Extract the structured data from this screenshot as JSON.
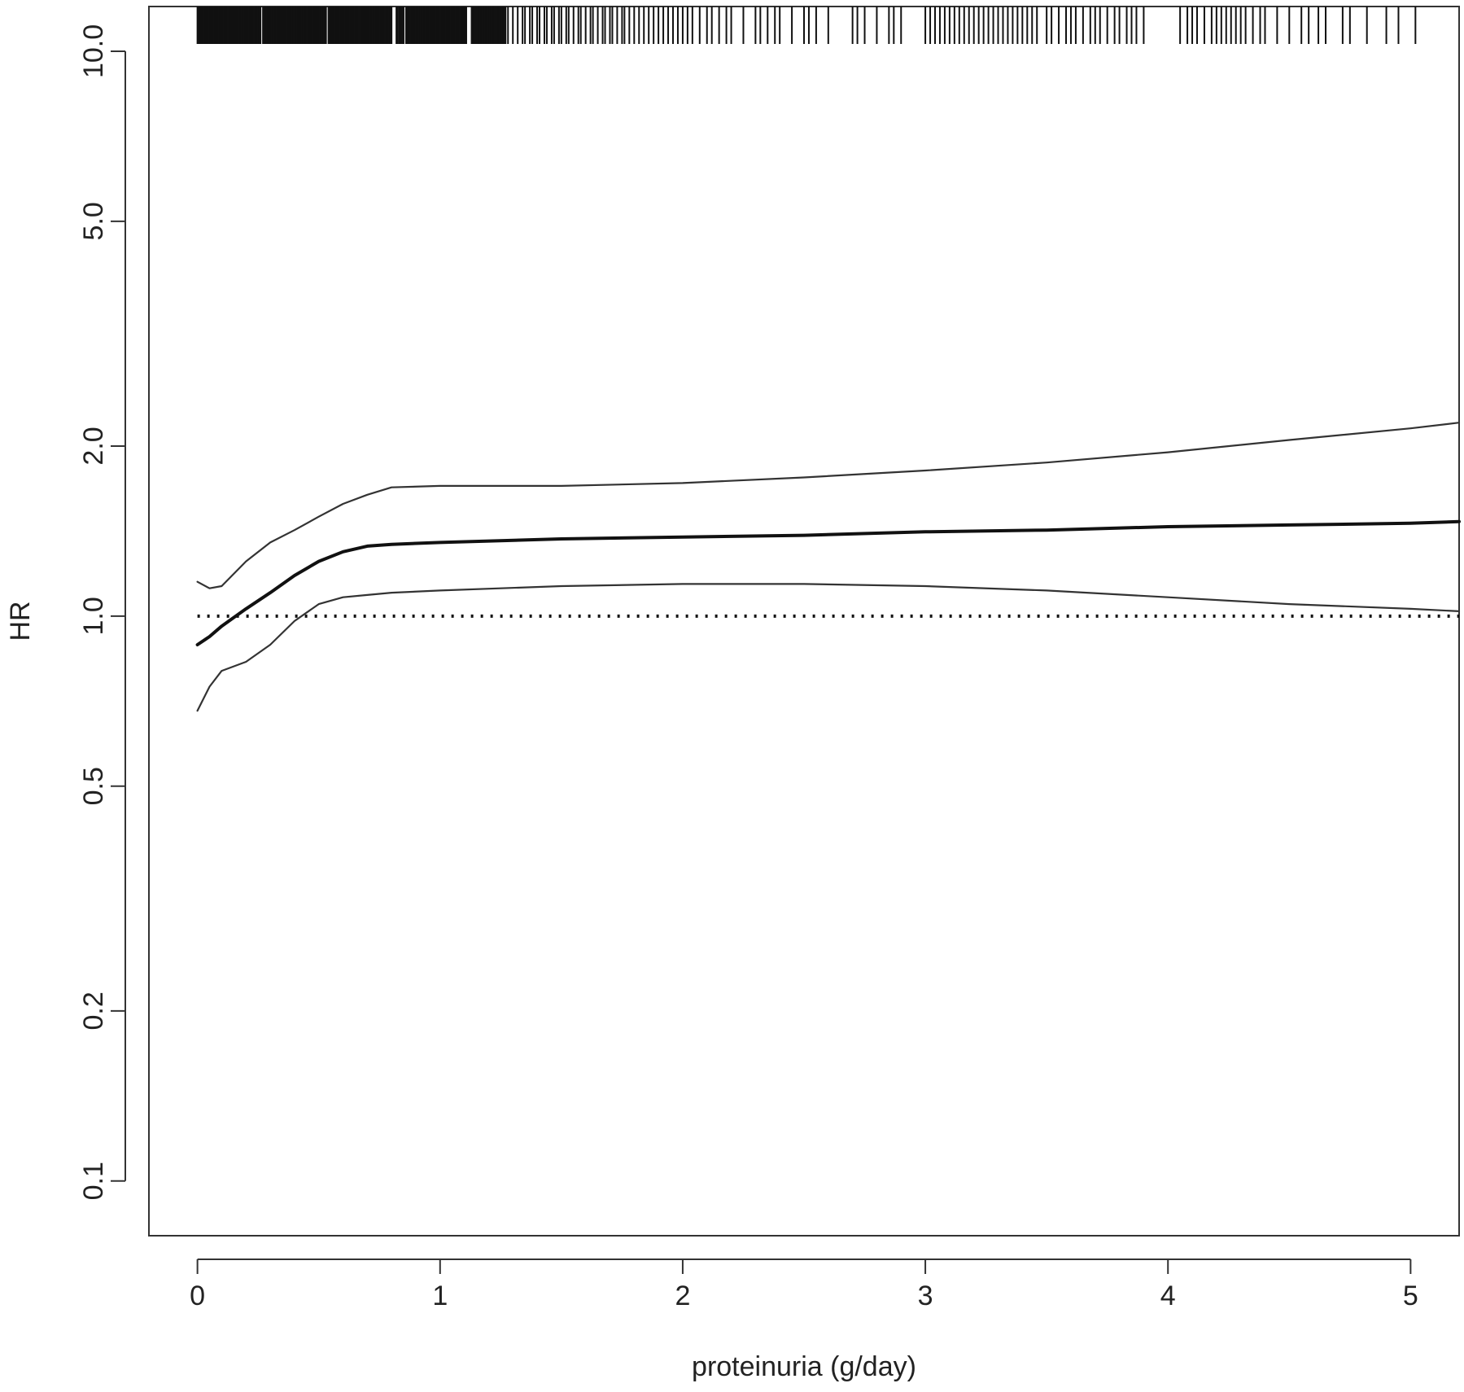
{
  "chart_data": {
    "type": "line",
    "title": "",
    "xlabel": "proteinuria (g/day)",
    "ylabel": "HR",
    "xlim": [
      -0.2,
      5.2
    ],
    "ylim": [
      0.08,
      12.0
    ],
    "y_scale": "log",
    "x_ticks": [
      0,
      1,
      2,
      3,
      4,
      5
    ],
    "x_tick_labels": [
      "0",
      "1",
      "2",
      "3",
      "4",
      "5"
    ],
    "y_ticks": [
      0.1,
      0.2,
      0.5,
      1.0,
      2.0,
      5.0,
      10.0
    ],
    "y_tick_labels": [
      "0.1",
      "0.2",
      "0.5",
      "1.0",
      "2.0",
      "5.0",
      "10.0"
    ],
    "grid": false,
    "legend": "none",
    "series": [
      {
        "style": "solid-thick",
        "color": "#111111",
        "x": [
          0,
          0.05,
          0.1,
          0.2,
          0.3,
          0.4,
          0.5,
          0.6,
          0.7,
          0.8,
          1.0,
          1.5,
          2.0,
          2.5,
          3.0,
          3.5,
          4.0,
          4.5,
          5.0,
          5.2
        ],
        "y": [
          0.89,
          0.92,
          0.96,
          1.03,
          1.1,
          1.18,
          1.25,
          1.3,
          1.33,
          1.34,
          1.35,
          1.37,
          1.38,
          1.39,
          1.41,
          1.42,
          1.44,
          1.45,
          1.46,
          1.47
        ]
      },
      {
        "style": "solid-thin",
        "color": "#333333",
        "x": [
          0,
          0.05,
          0.1,
          0.2,
          0.3,
          0.4,
          0.5,
          0.6,
          0.7,
          0.8,
          1.0,
          1.5,
          2.0,
          2.5,
          3.0,
          3.5,
          4.0,
          4.5,
          5.0,
          5.2
        ],
        "y": [
          1.15,
          1.12,
          1.13,
          1.25,
          1.35,
          1.42,
          1.5,
          1.58,
          1.64,
          1.69,
          1.7,
          1.7,
          1.72,
          1.76,
          1.81,
          1.87,
          1.95,
          2.05,
          2.15,
          2.2
        ]
      },
      {
        "style": "solid-thin",
        "color": "#333333",
        "x": [
          0,
          0.05,
          0.1,
          0.2,
          0.3,
          0.4,
          0.5,
          0.6,
          0.7,
          0.8,
          1.0,
          1.5,
          2.0,
          2.5,
          3.0,
          3.5,
          4.0,
          4.5,
          5.0,
          5.2
        ],
        "y": [
          0.68,
          0.75,
          0.8,
          0.83,
          0.89,
          0.98,
          1.05,
          1.08,
          1.09,
          1.1,
          1.11,
          1.13,
          1.14,
          1.14,
          1.13,
          1.11,
          1.08,
          1.05,
          1.03,
          1.02
        ]
      }
    ],
    "reference_line": {
      "y": 1.0,
      "style": "dotted",
      "color": "#111111"
    },
    "rug": {
      "position": "top",
      "bands": [
        {
          "from": 0.0,
          "to": 0.26,
          "step": 0.004
        },
        {
          "from": 0.27,
          "to": 0.53,
          "step": 0.004
        },
        {
          "from": 0.54,
          "to": 0.8,
          "step": 0.004
        },
        {
          "from": 0.82,
          "to": 0.85,
          "step": 0.006
        },
        {
          "from": 0.86,
          "to": 1.11,
          "step": 0.004
        },
        {
          "from": 1.13,
          "to": 1.27,
          "step": 0.005
        }
      ],
      "x": [
        1.28,
        1.3,
        1.32,
        1.34,
        1.35,
        1.37,
        1.38,
        1.4,
        1.41,
        1.43,
        1.44,
        1.46,
        1.47,
        1.49,
        1.5,
        1.52,
        1.53,
        1.55,
        1.57,
        1.58,
        1.6,
        1.62,
        1.63,
        1.65,
        1.67,
        1.68,
        1.7,
        1.71,
        1.73,
        1.75,
        1.76,
        1.78,
        1.8,
        1.82,
        1.84,
        1.86,
        1.88,
        1.9,
        1.92,
        1.94,
        1.96,
        1.98,
        2.0,
        2.02,
        2.04,
        2.07,
        2.1,
        2.12,
        2.15,
        2.18,
        2.2,
        2.25,
        2.3,
        2.32,
        2.35,
        2.38,
        2.4,
        2.45,
        2.5,
        2.52,
        2.55,
        2.6,
        2.7,
        2.72,
        2.75,
        2.8,
        2.85,
        2.87,
        2.9,
        3.0,
        3.02,
        3.04,
        3.06,
        3.08,
        3.1,
        3.12,
        3.14,
        3.16,
        3.18,
        3.2,
        3.22,
        3.24,
        3.26,
        3.28,
        3.3,
        3.32,
        3.34,
        3.36,
        3.38,
        3.4,
        3.42,
        3.44,
        3.46,
        3.5,
        3.52,
        3.55,
        3.58,
        3.6,
        3.62,
        3.65,
        3.68,
        3.7,
        3.72,
        3.75,
        3.78,
        3.8,
        3.83,
        3.85,
        3.87,
        3.9,
        4.05,
        4.08,
        4.1,
        4.12,
        4.15,
        4.18,
        4.2,
        4.22,
        4.24,
        4.26,
        4.28,
        4.3,
        4.32,
        4.35,
        4.38,
        4.4,
        4.45,
        4.5,
        4.55,
        4.58,
        4.62,
        4.65,
        4.72,
        4.75,
        4.82,
        4.9,
        4.95,
        5.02
      ]
    }
  }
}
